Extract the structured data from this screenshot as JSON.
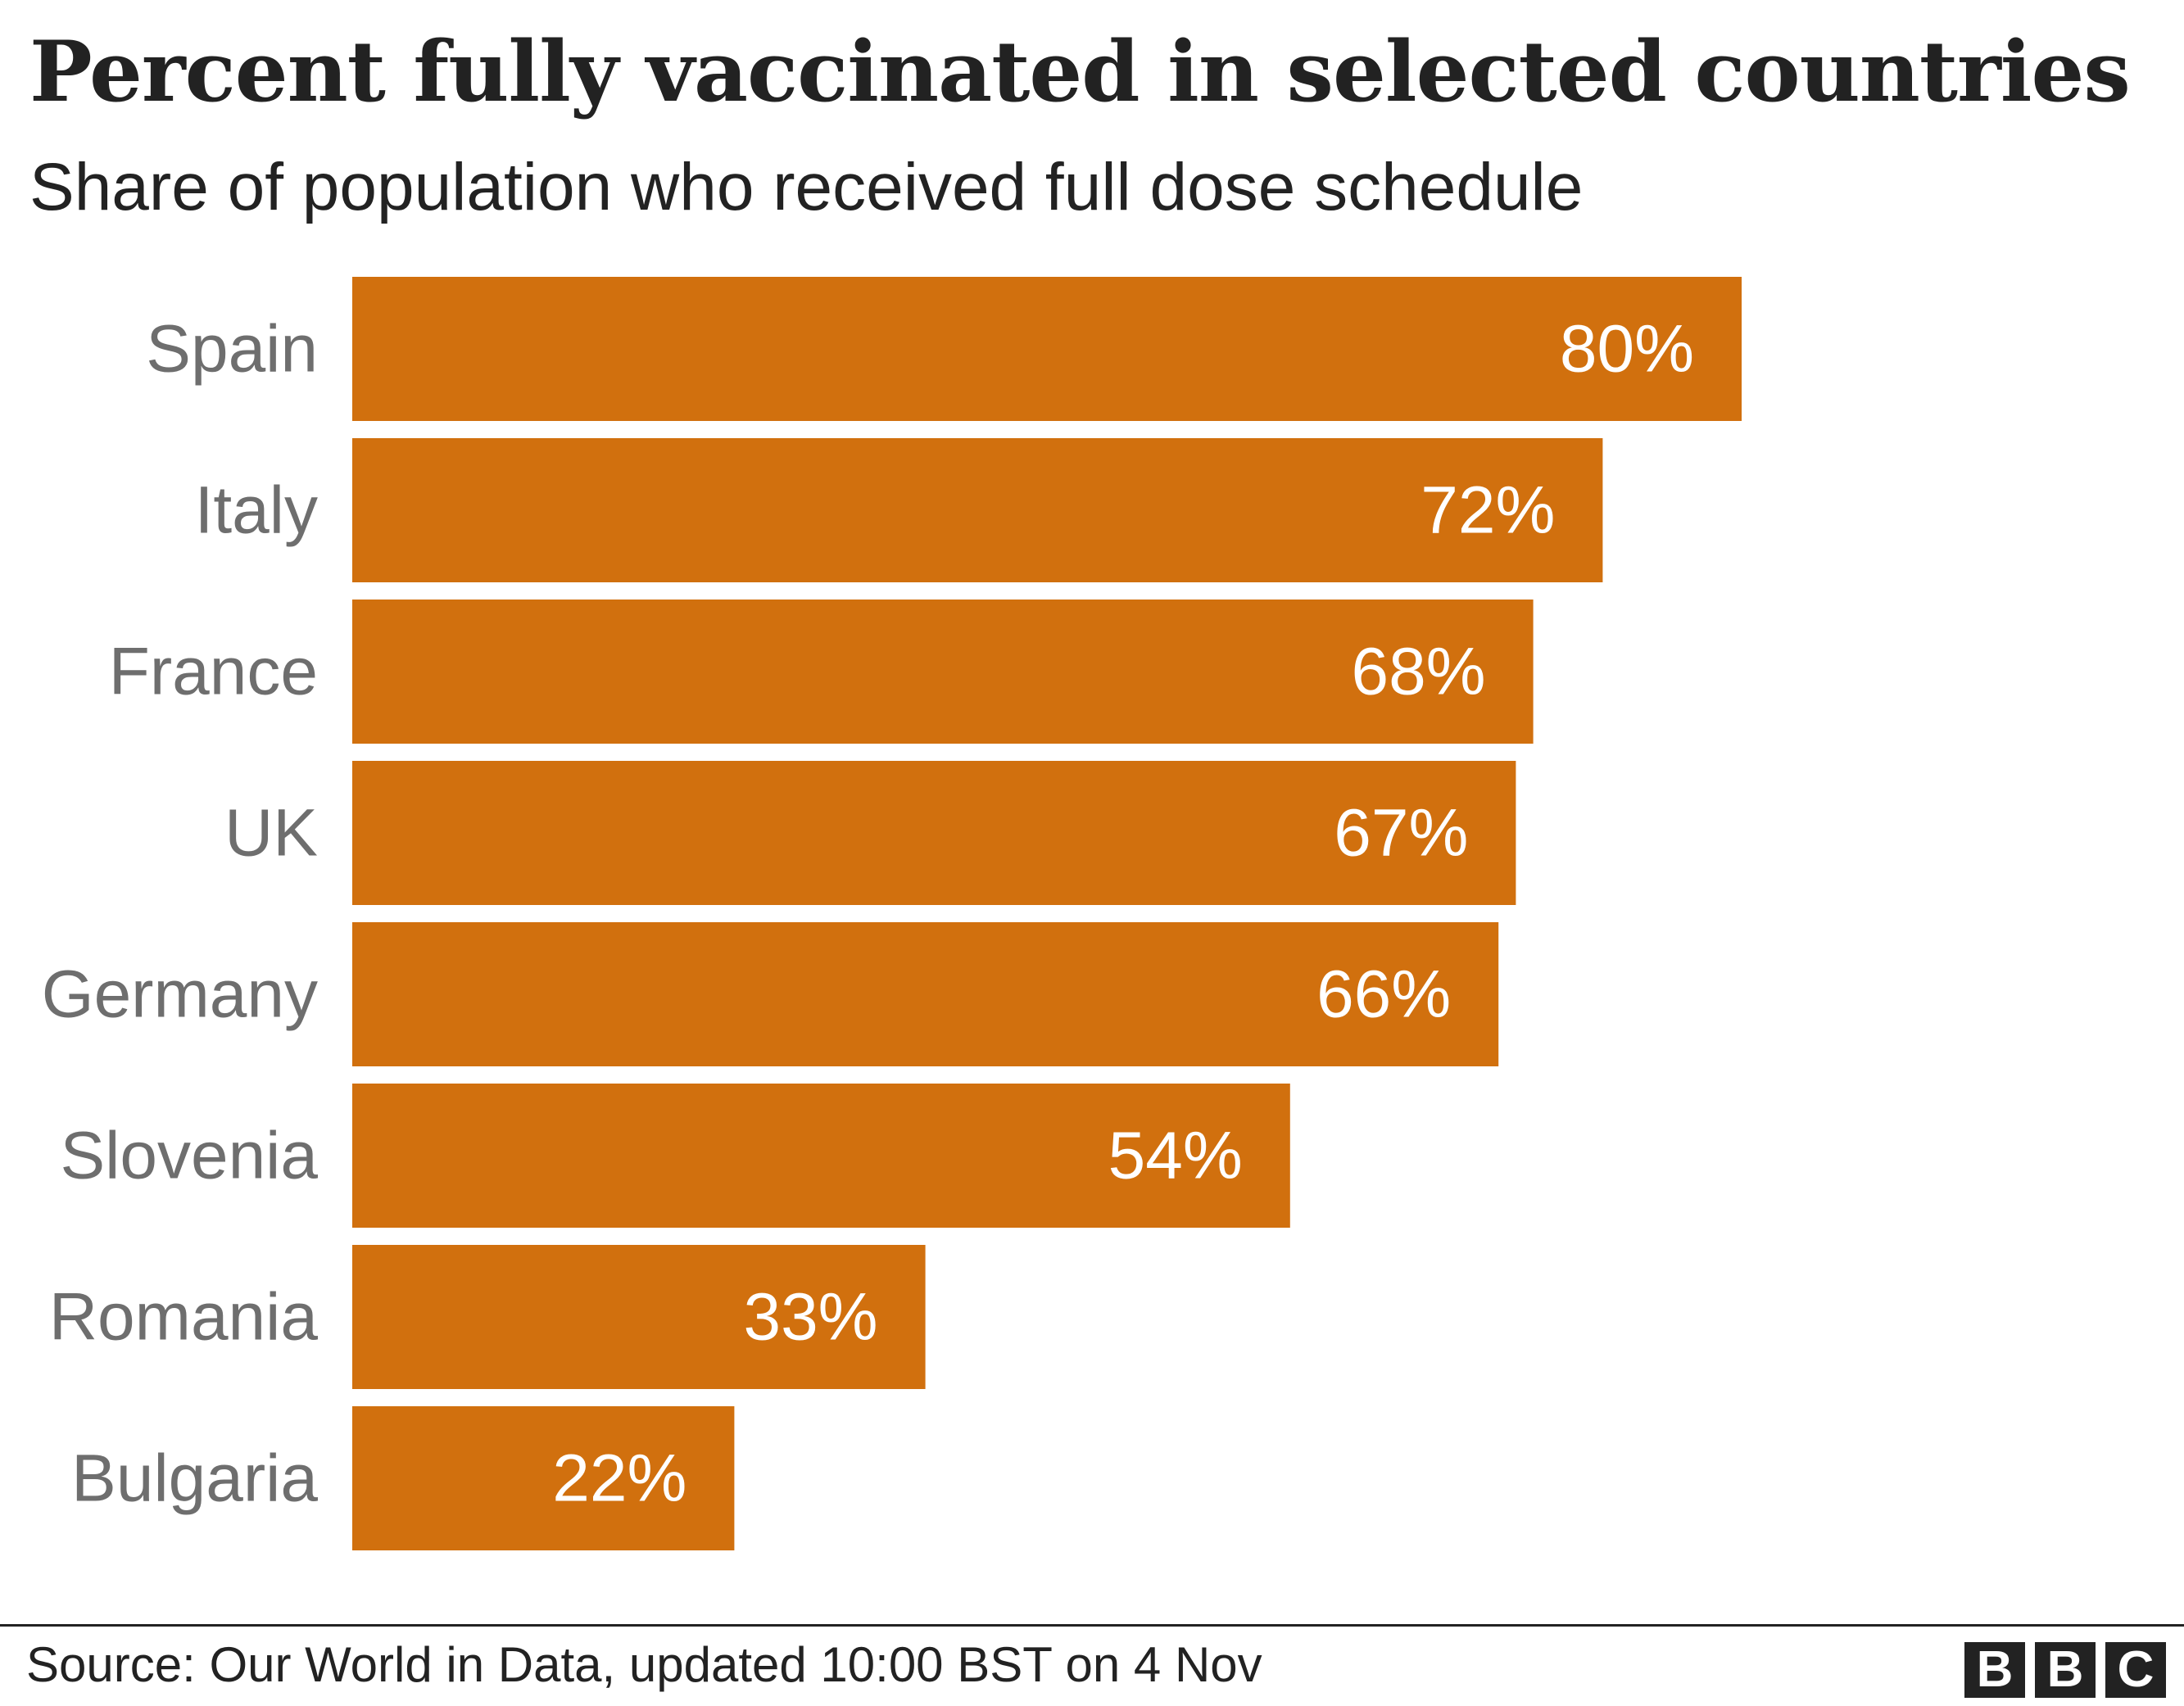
{
  "title": "Percent fully vaccinated in selected countries",
  "subtitle": "Share of population who received full dose schedule",
  "source": "Source: Our World in Data, updated 10:00 BST on 4 Nov",
  "logo": [
    "B",
    "B",
    "C"
  ],
  "colors": {
    "bar": "#d1700e",
    "category_label": "#6e6e6e",
    "value_label": "#ffffff",
    "text": "#222222"
  },
  "chart_data": {
    "type": "bar",
    "orientation": "horizontal",
    "title": "Percent fully vaccinated in selected countries",
    "subtitle": "Share of population who received full dose schedule",
    "categories": [
      "Spain",
      "Italy",
      "France",
      "UK",
      "Germany",
      "Slovenia",
      "Romania",
      "Bulgaria"
    ],
    "values": [
      80,
      72,
      68,
      67,
      66,
      54,
      33,
      22
    ],
    "value_labels": [
      "80%",
      "72%",
      "68%",
      "67%",
      "66%",
      "54%",
      "33%",
      "22%"
    ],
    "unit": "%",
    "xlim": [
      0,
      100
    ],
    "grid": false,
    "legend": "none"
  }
}
